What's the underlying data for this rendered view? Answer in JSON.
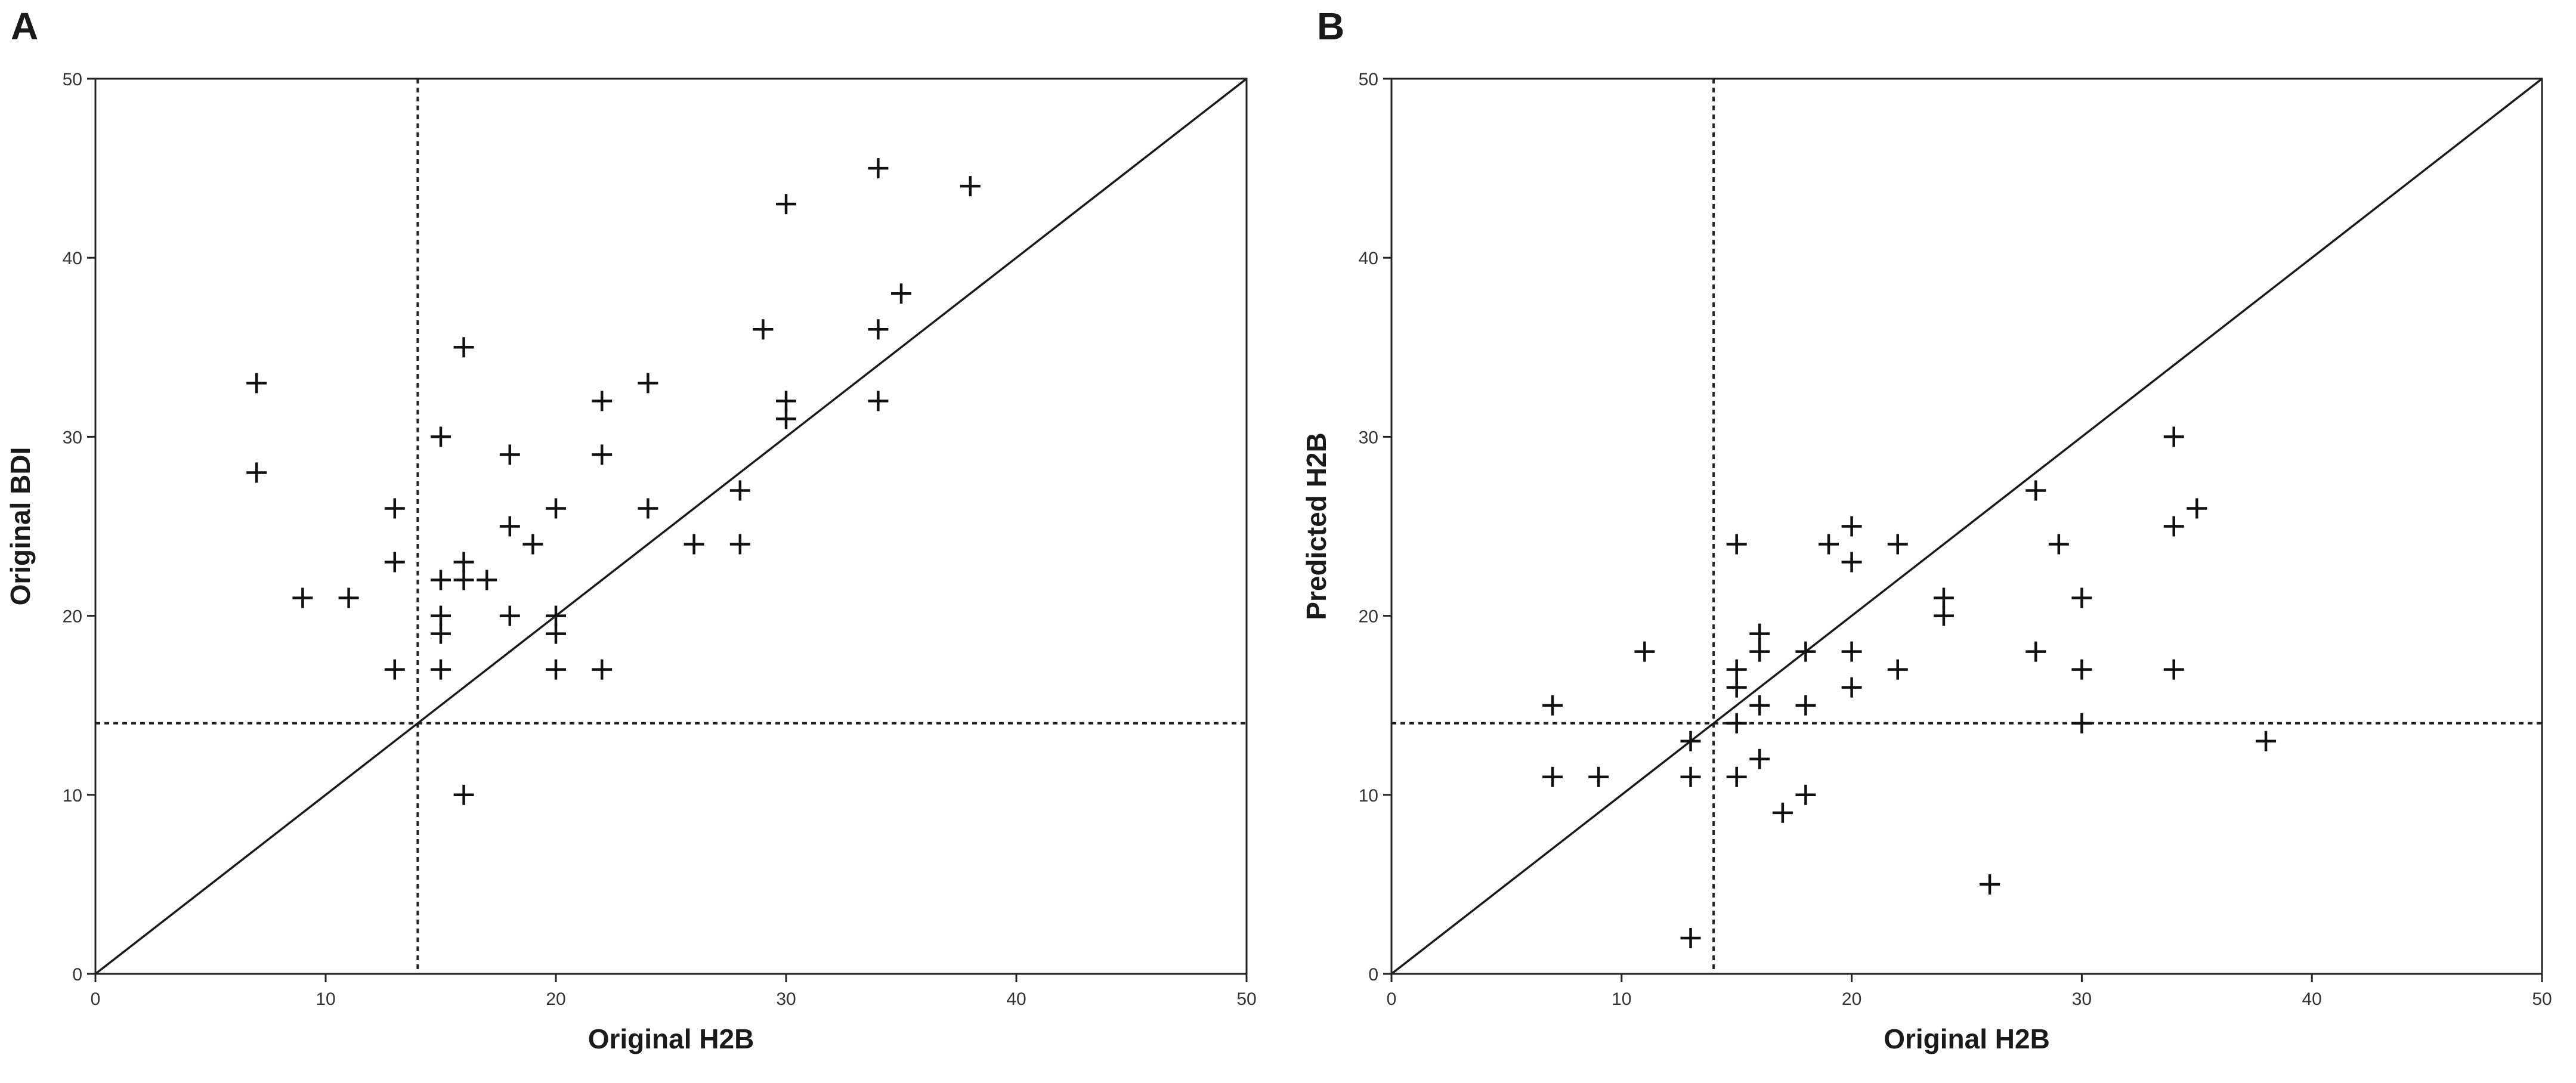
{
  "chart_data": [
    {
      "type": "scatter",
      "panel": "A",
      "xlabel": "Original H2B",
      "ylabel": "Original BDI",
      "xlim": [
        0,
        50
      ],
      "ylim": [
        0,
        50
      ],
      "xticks": [
        "0",
        "10",
        "20",
        "30",
        "40",
        "50"
      ],
      "yticks": [
        "0",
        "10",
        "20",
        "30",
        "40",
        "50"
      ],
      "grid": false,
      "legend": "none",
      "marker": "plus",
      "cutoff_x": 14,
      "cutoff_y": 14,
      "identity_line": true,
      "points": [
        [
          7,
          33
        ],
        [
          7,
          28
        ],
        [
          9,
          21
        ],
        [
          11,
          21
        ],
        [
          13,
          26
        ],
        [
          13,
          23
        ],
        [
          13,
          17
        ],
        [
          15,
          30
        ],
        [
          15,
          22
        ],
        [
          15,
          20
        ],
        [
          15,
          19
        ],
        [
          15,
          17
        ],
        [
          16,
          35
        ],
        [
          16,
          23
        ],
        [
          16,
          22
        ],
        [
          16,
          10
        ],
        [
          17,
          22
        ],
        [
          18,
          29
        ],
        [
          18,
          25
        ],
        [
          18,
          20
        ],
        [
          19,
          24
        ],
        [
          20,
          26
        ],
        [
          20,
          20
        ],
        [
          20,
          19
        ],
        [
          20,
          17
        ],
        [
          22,
          32
        ],
        [
          22,
          29
        ],
        [
          22,
          17
        ],
        [
          24,
          33
        ],
        [
          24,
          26
        ],
        [
          26,
          24
        ],
        [
          28,
          27
        ],
        [
          28,
          24
        ],
        [
          29,
          36
        ],
        [
          30,
          43
        ],
        [
          30,
          32
        ],
        [
          30,
          31
        ],
        [
          34,
          45
        ],
        [
          34,
          36
        ],
        [
          34,
          32
        ],
        [
          35,
          38
        ],
        [
          38,
          44
        ]
      ]
    },
    {
      "type": "scatter",
      "panel": "B",
      "xlabel": "Original H2B",
      "ylabel": "Predicted H2B",
      "xlim": [
        0,
        50
      ],
      "ylim": [
        0,
        50
      ],
      "xticks": [
        "0",
        "10",
        "20",
        "30",
        "40",
        "50"
      ],
      "yticks": [
        "0",
        "10",
        "20",
        "30",
        "40",
        "50"
      ],
      "grid": false,
      "legend": "none",
      "marker": "plus",
      "cutoff_x": 14,
      "cutoff_y": 14,
      "identity_line": true,
      "points": [
        [
          7,
          15
        ],
        [
          7,
          11
        ],
        [
          9,
          11
        ],
        [
          11,
          18
        ],
        [
          13,
          13
        ],
        [
          13,
          11
        ],
        [
          13,
          2
        ],
        [
          15,
          24
        ],
        [
          15,
          17
        ],
        [
          15,
          16
        ],
        [
          15,
          14
        ],
        [
          15,
          11
        ],
        [
          16,
          19
        ],
        [
          16,
          18
        ],
        [
          16,
          15
        ],
        [
          16,
          12
        ],
        [
          17,
          9
        ],
        [
          18,
          18
        ],
        [
          18,
          15
        ],
        [
          18,
          10
        ],
        [
          19,
          24
        ],
        [
          20,
          25
        ],
        [
          20,
          23
        ],
        [
          20,
          18
        ],
        [
          20,
          16
        ],
        [
          22,
          24
        ],
        [
          22,
          17
        ],
        [
          24,
          21
        ],
        [
          24,
          20
        ],
        [
          26,
          5
        ],
        [
          28,
          27
        ],
        [
          28,
          18
        ],
        [
          29,
          24
        ],
        [
          30,
          21
        ],
        [
          30,
          17
        ],
        [
          30,
          14
        ],
        [
          34,
          30
        ],
        [
          34,
          25
        ],
        [
          34,
          17
        ],
        [
          35,
          26
        ],
        [
          38,
          13
        ]
      ]
    }
  ]
}
